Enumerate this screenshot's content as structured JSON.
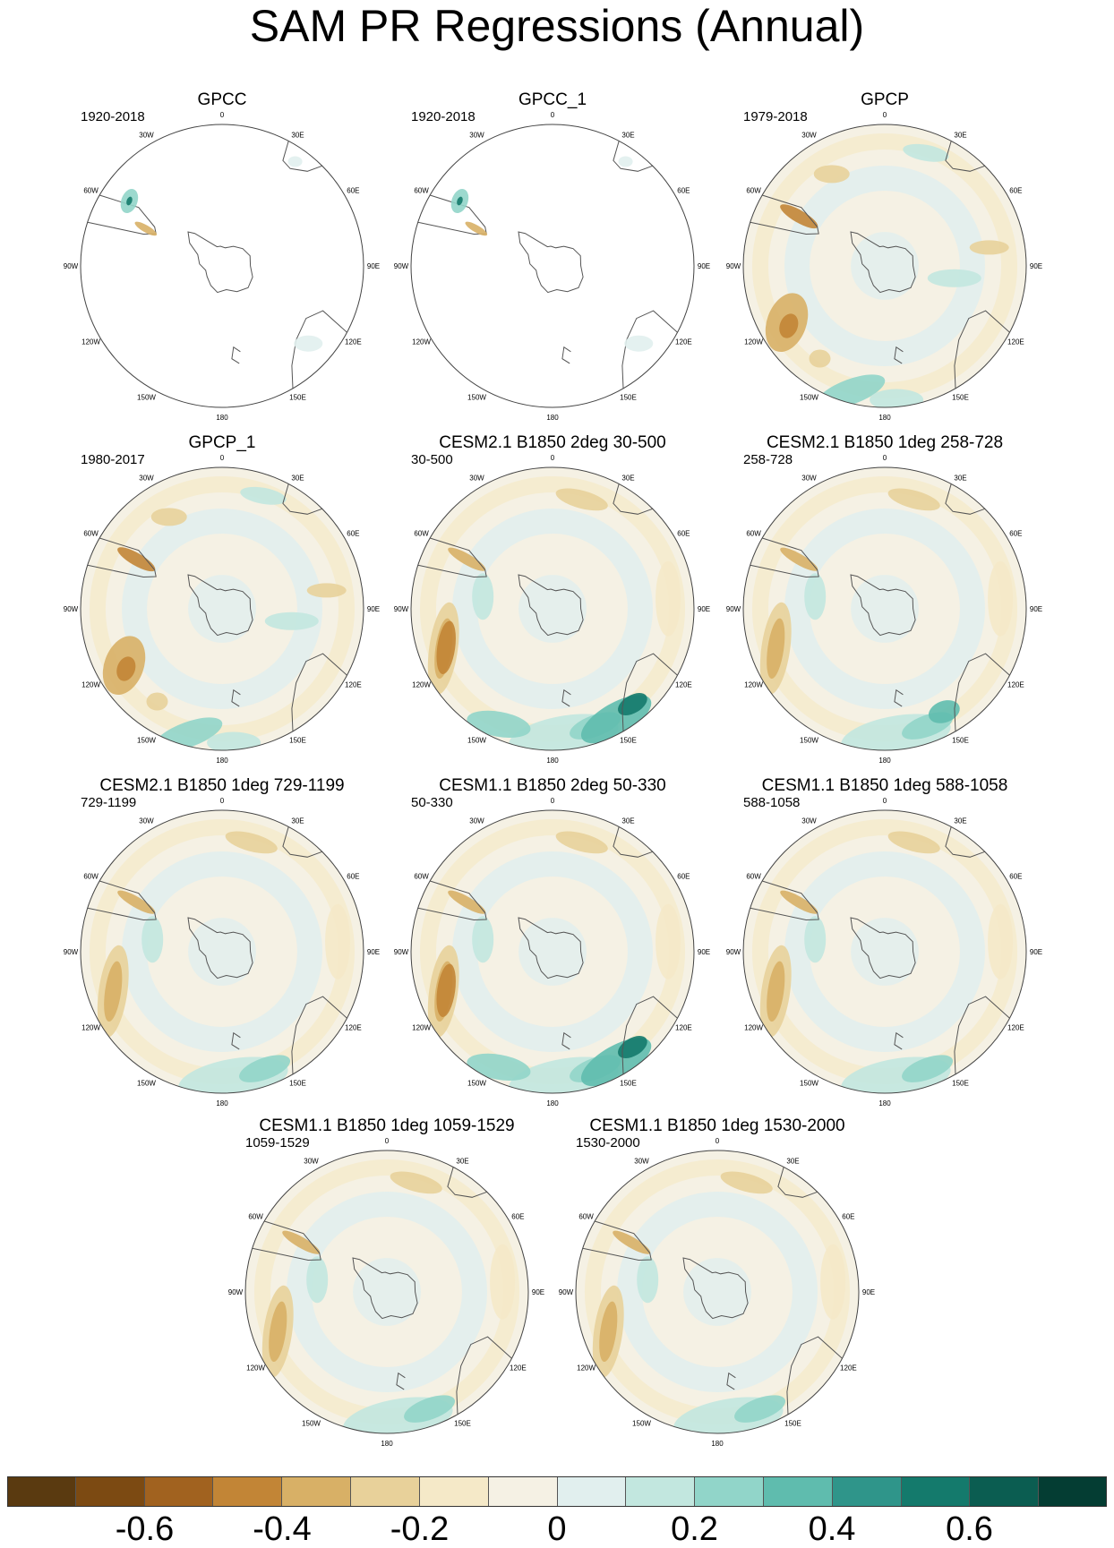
{
  "title": "SAM PR Regressions (Annual)",
  "lon_labels": [
    "0",
    "30E",
    "60E",
    "90E",
    "120E",
    "150E",
    "180",
    "150W",
    "120W",
    "90W",
    "60W",
    "30W"
  ],
  "panels": [
    {
      "title": "GPCC",
      "period": "1920-2018",
      "coverage": "land-only",
      "pattern": "gpcc"
    },
    {
      "title": "GPCC_1",
      "period": "1920-2018",
      "coverage": "land-only",
      "pattern": "gpcc"
    },
    {
      "title": "GPCP",
      "period": "1979-2018",
      "coverage": "global",
      "pattern": "obs"
    },
    {
      "title": "GPCP_1",
      "period": "1980-2017",
      "coverage": "global",
      "pattern": "obs"
    },
    {
      "title": "CESM2.1 B1850 2deg 30-500",
      "period": "30-500",
      "coverage": "global",
      "pattern": "model-strong"
    },
    {
      "title": "CESM2.1 B1850 1deg 258-728",
      "period": "258-728",
      "coverage": "global",
      "pattern": "model-weak"
    },
    {
      "title": "CESM2.1 B1850 1deg 729-1199",
      "period": "729-1199",
      "coverage": "global",
      "pattern": "model"
    },
    {
      "title": "CESM1.1 B1850 2deg 50-330",
      "period": "50-330",
      "coverage": "global",
      "pattern": "model-strong"
    },
    {
      "title": "CESM1.1 B1850 1deg 588-1058",
      "period": "588-1058",
      "coverage": "global",
      "pattern": "model"
    },
    {
      "title": "CESM1.1 B1850 1deg 1059-1529",
      "period": "1059-1529",
      "coverage": "global",
      "pattern": "model"
    },
    {
      "title": "CESM1.1 B1850 1deg 1530-2000",
      "period": "1530-2000",
      "coverage": "global",
      "pattern": "model"
    }
  ],
  "colorbar": {
    "colors": [
      "#5a3a10",
      "#7c4a12",
      "#a1621f",
      "#c28536",
      "#d8b066",
      "#e8d19a",
      "#f5e9c8",
      "#f5f1e4",
      "#e1efee",
      "#c2e7df",
      "#91d5c9",
      "#5fbcae",
      "#2f958a",
      "#147a6c",
      "#0b5d51",
      "#043d33"
    ],
    "tick_labels": [
      "-0.6",
      "-0.4",
      "-0.2",
      "0",
      "0.2",
      "0.4",
      "0.6"
    ]
  }
}
